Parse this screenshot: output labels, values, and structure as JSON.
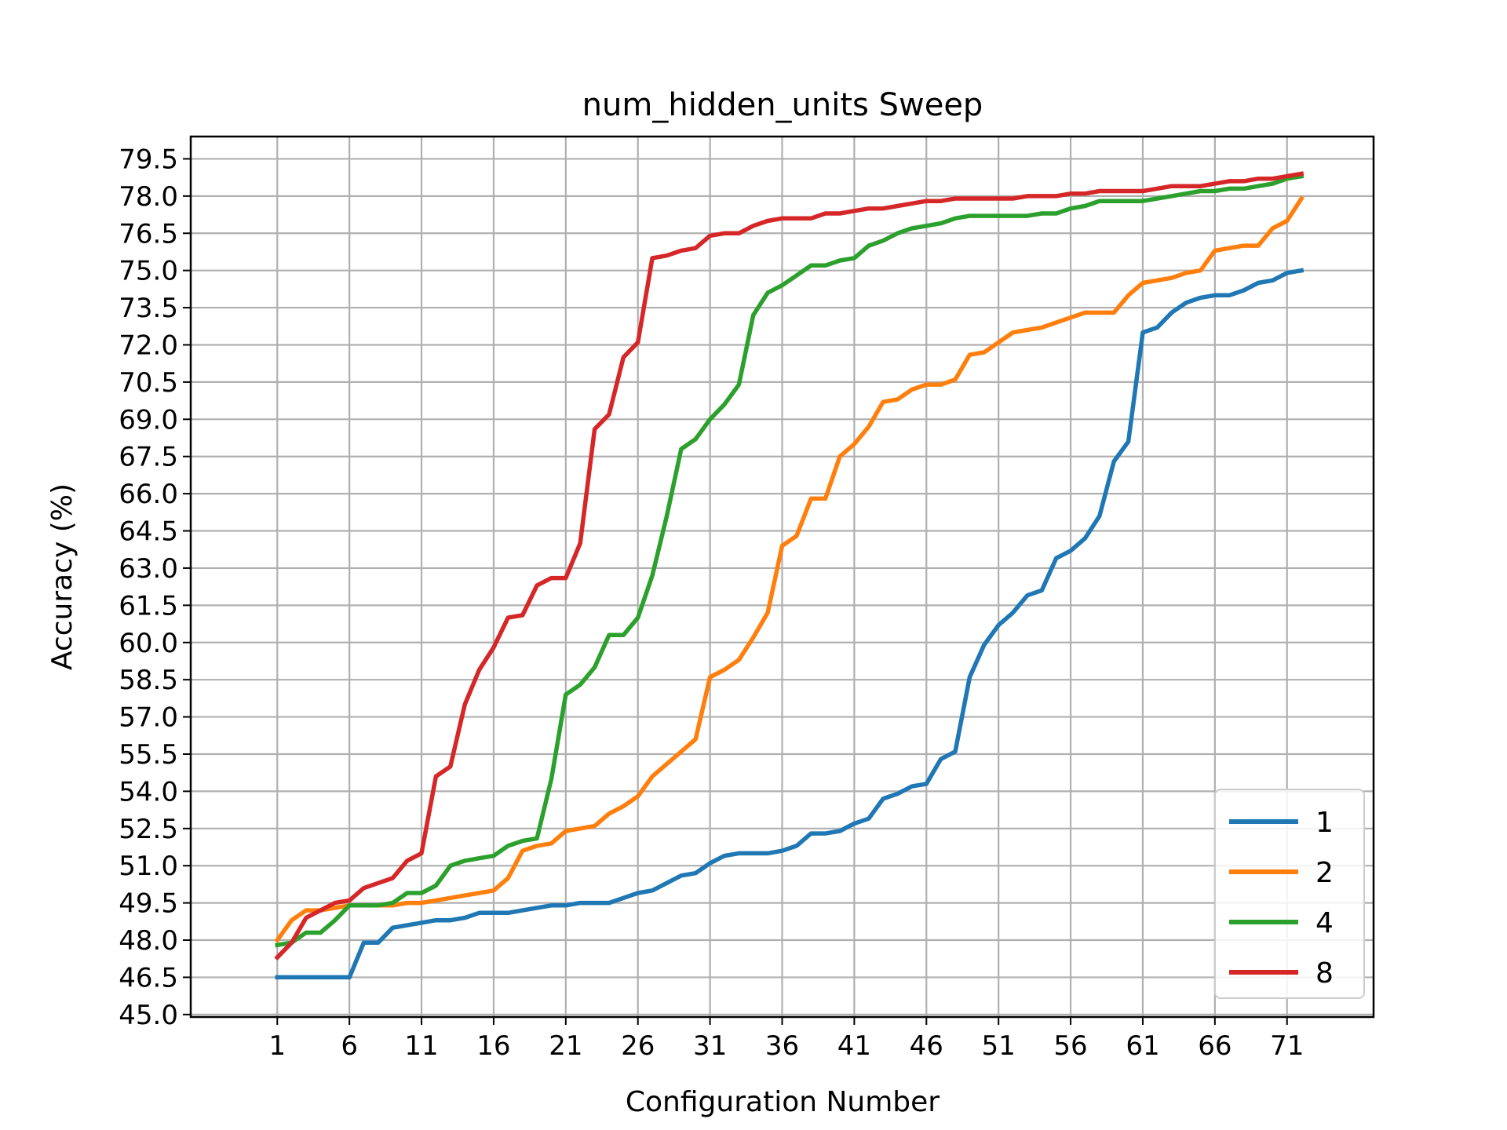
{
  "chart_data": {
    "type": "line",
    "title": "num_hidden_units Sweep",
    "xlabel": "Configuration Number",
    "ylabel": "Accuracy (%)",
    "xlim": [
      -5,
      77
    ],
    "ylim": [
      44.9,
      80.4
    ],
    "grid": true,
    "legend_position": "lower right",
    "x_ticks": [
      1,
      6,
      11,
      16,
      21,
      26,
      31,
      36,
      41,
      46,
      51,
      56,
      61,
      66,
      71
    ],
    "y_ticks": [
      45.0,
      46.5,
      48.0,
      49.5,
      51.0,
      52.5,
      54.0,
      55.5,
      57.0,
      58.5,
      60.0,
      61.5,
      63.0,
      64.5,
      66.0,
      67.5,
      69.0,
      70.5,
      72.0,
      73.5,
      75.0,
      76.5,
      78.0,
      79.5
    ],
    "x": [
      1,
      2,
      3,
      4,
      5,
      6,
      7,
      8,
      9,
      10,
      11,
      12,
      13,
      14,
      15,
      16,
      17,
      18,
      19,
      20,
      21,
      22,
      23,
      24,
      25,
      26,
      27,
      28,
      29,
      30,
      31,
      32,
      33,
      34,
      35,
      36,
      37,
      38,
      39,
      40,
      41,
      42,
      43,
      44,
      45,
      46,
      47,
      48,
      49,
      50,
      51,
      52,
      53,
      54,
      55,
      56,
      57,
      58,
      59,
      60,
      61,
      62,
      63,
      64,
      65,
      66,
      67,
      68,
      69,
      70,
      71,
      72
    ],
    "series": [
      {
        "name": "1",
        "color": "#1f77b4",
        "values": [
          46.5,
          46.5,
          46.5,
          46.5,
          46.5,
          46.5,
          47.9,
          47.9,
          48.5,
          48.6,
          48.7,
          48.8,
          48.8,
          48.9,
          49.1,
          49.1,
          49.1,
          49.2,
          49.3,
          49.4,
          49.4,
          49.5,
          49.5,
          49.5,
          49.7,
          49.9,
          50.0,
          50.3,
          50.6,
          50.7,
          51.1,
          51.4,
          51.5,
          51.5,
          51.5,
          51.6,
          51.8,
          52.3,
          52.3,
          52.4,
          52.7,
          52.9,
          53.7,
          53.9,
          54.2,
          54.3,
          55.3,
          55.6,
          58.6,
          59.9,
          60.7,
          61.2,
          61.9,
          62.1,
          63.4,
          63.7,
          64.2,
          65.1,
          67.3,
          68.1,
          72.5,
          72.7,
          73.3,
          73.7,
          73.9,
          74.0,
          74.0,
          74.2,
          74.5,
          74.6,
          74.9,
          75.0
        ]
      },
      {
        "name": "2",
        "color": "#ff7f0e",
        "values": [
          48.0,
          48.8,
          49.2,
          49.2,
          49.3,
          49.4,
          49.4,
          49.4,
          49.4,
          49.5,
          49.5,
          49.6,
          49.7,
          49.8,
          49.9,
          50.0,
          50.5,
          51.6,
          51.8,
          51.9,
          52.4,
          52.5,
          52.6,
          53.1,
          53.4,
          53.8,
          54.6,
          55.1,
          55.6,
          56.1,
          58.6,
          58.9,
          59.3,
          60.2,
          61.2,
          63.9,
          64.3,
          65.8,
          65.8,
          67.5,
          68.0,
          68.7,
          69.7,
          69.8,
          70.2,
          70.4,
          70.4,
          70.6,
          71.6,
          71.7,
          72.1,
          72.5,
          72.6,
          72.7,
          72.9,
          73.1,
          73.3,
          73.3,
          73.3,
          74.0,
          74.5,
          74.6,
          74.7,
          74.9,
          75.0,
          75.8,
          75.9,
          76.0,
          76.0,
          76.7,
          77.0,
          77.9
        ]
      },
      {
        "name": "4",
        "color": "#2ca02c",
        "values": [
          47.8,
          47.9,
          48.3,
          48.3,
          48.8,
          49.4,
          49.4,
          49.4,
          49.5,
          49.9,
          49.9,
          50.2,
          51.0,
          51.2,
          51.3,
          51.4,
          51.8,
          52.0,
          52.1,
          54.5,
          57.9,
          58.3,
          59.0,
          60.3,
          60.3,
          61.0,
          62.7,
          65.1,
          67.8,
          68.2,
          69.0,
          69.6,
          70.4,
          73.2,
          74.1,
          74.4,
          74.8,
          75.2,
          75.2,
          75.4,
          75.5,
          76.0,
          76.2,
          76.5,
          76.7,
          76.8,
          76.9,
          77.1,
          77.2,
          77.2,
          77.2,
          77.2,
          77.2,
          77.3,
          77.3,
          77.5,
          77.6,
          77.8,
          77.8,
          77.8,
          77.8,
          77.9,
          78.0,
          78.1,
          78.2,
          78.2,
          78.3,
          78.3,
          78.4,
          78.5,
          78.7,
          78.8
        ]
      },
      {
        "name": "8",
        "color": "#d62728",
        "values": [
          47.3,
          47.9,
          48.9,
          49.2,
          49.5,
          49.6,
          50.1,
          50.3,
          50.5,
          51.2,
          51.5,
          54.6,
          55.0,
          57.5,
          58.9,
          59.8,
          61.0,
          61.1,
          62.3,
          62.6,
          62.6,
          64.0,
          68.6,
          69.2,
          71.5,
          72.1,
          75.5,
          75.6,
          75.8,
          75.9,
          76.4,
          76.5,
          76.5,
          76.8,
          77.0,
          77.1,
          77.1,
          77.1,
          77.3,
          77.3,
          77.4,
          77.5,
          77.5,
          77.6,
          77.7,
          77.8,
          77.8,
          77.9,
          77.9,
          77.9,
          77.9,
          77.9,
          78.0,
          78.0,
          78.0,
          78.1,
          78.1,
          78.2,
          78.2,
          78.2,
          78.2,
          78.3,
          78.4,
          78.4,
          78.4,
          78.5,
          78.6,
          78.6,
          78.7,
          78.7,
          78.8,
          78.9
        ]
      }
    ]
  }
}
